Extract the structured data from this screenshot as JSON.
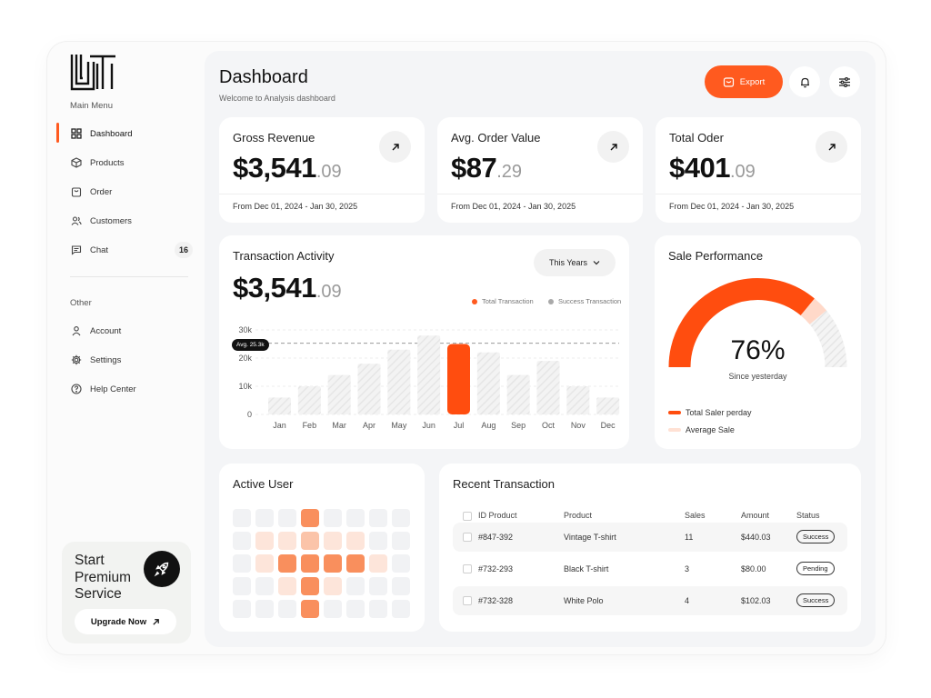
{
  "sidebar": {
    "main_menu_title": "Main Menu",
    "items": [
      {
        "label": "Dashboard",
        "icon": "grid-icon",
        "active": true
      },
      {
        "label": "Products",
        "icon": "box-icon"
      },
      {
        "label": "Order",
        "icon": "bag-icon"
      },
      {
        "label": "Customers",
        "icon": "users-icon"
      },
      {
        "label": "Chat",
        "icon": "chat-icon",
        "badge": "16"
      }
    ],
    "other_title": "Other",
    "other_items": [
      {
        "label": "Account",
        "icon": "user-icon"
      },
      {
        "label": "Settings",
        "icon": "gear-icon"
      },
      {
        "label": "Help Center",
        "icon": "help-icon"
      }
    ],
    "premium": {
      "title": "Start Premium Service",
      "button": "Upgrade Now"
    }
  },
  "header": {
    "title": "Dashboard",
    "subtitle": "Welcome to Analysis dashboard",
    "export_label": "Export"
  },
  "stats": [
    {
      "label": "Gross Revenue",
      "value_main": "$3,541",
      "value_dec": ".09",
      "range": "From Dec 01, 2024 - Jan 30, 2025"
    },
    {
      "label": "Avg. Order Value",
      "value_main": "$87",
      "value_dec": ".29",
      "range": "From Dec 01, 2024 - Jan 30, 2025"
    },
    {
      "label": "Total Oder",
      "value_main": "$401",
      "value_dec": ".09",
      "range": "From Dec 01, 2024 - Jan 30, 2025"
    }
  ],
  "transaction": {
    "title": "Transaction Activity",
    "value_main": "$3,541",
    "value_dec": ".09",
    "dropdown": "This Years",
    "legend_total": "Total Transaction",
    "legend_success": "Success Transaction",
    "avg_label": "Avg. 25.3k"
  },
  "chart_data": {
    "type": "bar",
    "categories": [
      "Jan",
      "Feb",
      "Mar",
      "Apr",
      "May",
      "Jun",
      "Jul",
      "Aug",
      "Sep",
      "Oct",
      "Nov",
      "Dec"
    ],
    "values": [
      6,
      10,
      14,
      18,
      23,
      28,
      25,
      22,
      14,
      19,
      10,
      6
    ],
    "highlight": "Jul",
    "yticks": [
      "0",
      "10k",
      "20k",
      "30k"
    ],
    "ylim": [
      0,
      30
    ],
    "average": 25.3,
    "colors": {
      "bar": "#f0f0f0",
      "highlight": "#ff4d0f",
      "accent": "#ff5a1f"
    }
  },
  "performance": {
    "title": "Sale Performance",
    "percent": "76%",
    "percent_value": 76,
    "subtitle": "Since yesterday",
    "legend_1": "Total Saler perday",
    "legend_2": "Average Sale"
  },
  "active_user": {
    "title": "Active User",
    "grid": [
      [
        0,
        0,
        0,
        3,
        0,
        0,
        0,
        0
      ],
      [
        0,
        1,
        1,
        2,
        1,
        1,
        0,
        0
      ],
      [
        0,
        1,
        3,
        3,
        3,
        3,
        1,
        0
      ],
      [
        0,
        0,
        1,
        3,
        1,
        0,
        0,
        0
      ],
      [
        0,
        0,
        0,
        3,
        0,
        0,
        0,
        0
      ]
    ]
  },
  "recent": {
    "title": "Recent Transaction",
    "columns": [
      "ID Product",
      "Product",
      "Sales",
      "Amount",
      "Status"
    ],
    "rows": [
      {
        "id": "#847-392",
        "product": "Vintage T-shirt",
        "sales": "11",
        "amount": "$440.03",
        "status": "Success"
      },
      {
        "id": "#732-293",
        "product": "Black T-shirt",
        "sales": "3",
        "amount": "$80.00",
        "status": "Pending"
      },
      {
        "id": "#732-328",
        "product": "White Polo",
        "sales": "4",
        "amount": "$102.03",
        "status": "Success"
      }
    ]
  }
}
